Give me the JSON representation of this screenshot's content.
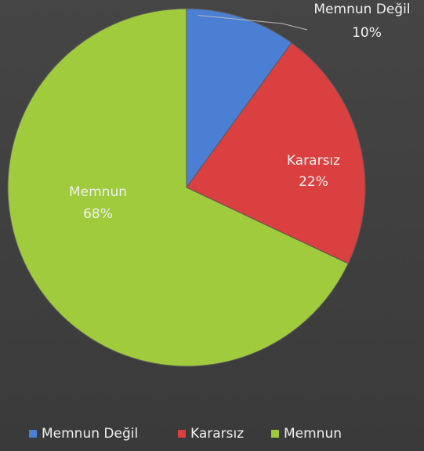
{
  "chart_data": {
    "type": "pie",
    "categories": [
      "Memnun Değil",
      "Kararsız",
      "Memnun"
    ],
    "values": [
      10,
      22,
      68
    ],
    "value_labels": [
      "10%",
      "22%",
      "68%"
    ],
    "colors": [
      "#4a7fd4",
      "#d9403f",
      "#9fcb3c"
    ],
    "legend": "bottom"
  }
}
